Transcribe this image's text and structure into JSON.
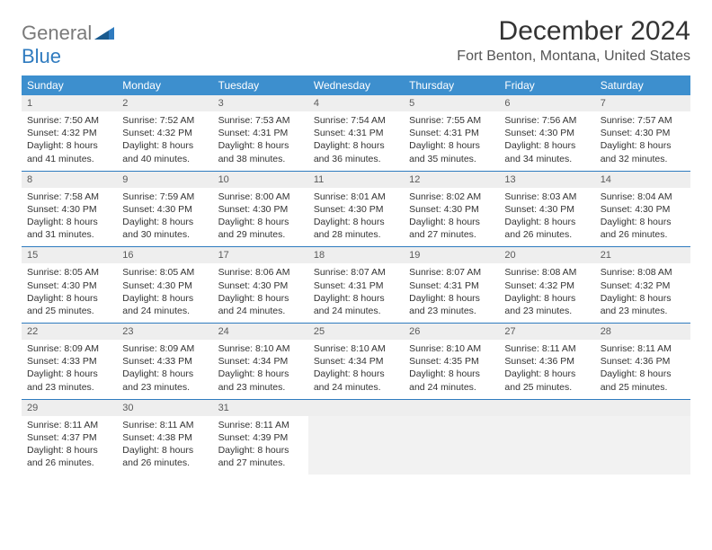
{
  "logo": {
    "word1": "General",
    "word2": "Blue"
  },
  "title": "December 2024",
  "location": "Fort Benton, Montana, United States",
  "colors": {
    "header_bg": "#3d8fce",
    "header_text": "#ffffff",
    "rule": "#2f7bbf",
    "daynum_bg": "#eeeeee",
    "logo_gray": "#7a7a7a",
    "logo_blue": "#2f7bbf"
  },
  "dow": [
    "Sunday",
    "Monday",
    "Tuesday",
    "Wednesday",
    "Thursday",
    "Friday",
    "Saturday"
  ],
  "weeks": [
    [
      {
        "n": "1",
        "sr": "Sunrise: 7:50 AM",
        "ss": "Sunset: 4:32 PM",
        "d1": "Daylight: 8 hours",
        "d2": "and 41 minutes."
      },
      {
        "n": "2",
        "sr": "Sunrise: 7:52 AM",
        "ss": "Sunset: 4:32 PM",
        "d1": "Daylight: 8 hours",
        "d2": "and 40 minutes."
      },
      {
        "n": "3",
        "sr": "Sunrise: 7:53 AM",
        "ss": "Sunset: 4:31 PM",
        "d1": "Daylight: 8 hours",
        "d2": "and 38 minutes."
      },
      {
        "n": "4",
        "sr": "Sunrise: 7:54 AM",
        "ss": "Sunset: 4:31 PM",
        "d1": "Daylight: 8 hours",
        "d2": "and 36 minutes."
      },
      {
        "n": "5",
        "sr": "Sunrise: 7:55 AM",
        "ss": "Sunset: 4:31 PM",
        "d1": "Daylight: 8 hours",
        "d2": "and 35 minutes."
      },
      {
        "n": "6",
        "sr": "Sunrise: 7:56 AM",
        "ss": "Sunset: 4:30 PM",
        "d1": "Daylight: 8 hours",
        "d2": "and 34 minutes."
      },
      {
        "n": "7",
        "sr": "Sunrise: 7:57 AM",
        "ss": "Sunset: 4:30 PM",
        "d1": "Daylight: 8 hours",
        "d2": "and 32 minutes."
      }
    ],
    [
      {
        "n": "8",
        "sr": "Sunrise: 7:58 AM",
        "ss": "Sunset: 4:30 PM",
        "d1": "Daylight: 8 hours",
        "d2": "and 31 minutes."
      },
      {
        "n": "9",
        "sr": "Sunrise: 7:59 AM",
        "ss": "Sunset: 4:30 PM",
        "d1": "Daylight: 8 hours",
        "d2": "and 30 minutes."
      },
      {
        "n": "10",
        "sr": "Sunrise: 8:00 AM",
        "ss": "Sunset: 4:30 PM",
        "d1": "Daylight: 8 hours",
        "d2": "and 29 minutes."
      },
      {
        "n": "11",
        "sr": "Sunrise: 8:01 AM",
        "ss": "Sunset: 4:30 PM",
        "d1": "Daylight: 8 hours",
        "d2": "and 28 minutes."
      },
      {
        "n": "12",
        "sr": "Sunrise: 8:02 AM",
        "ss": "Sunset: 4:30 PM",
        "d1": "Daylight: 8 hours",
        "d2": "and 27 minutes."
      },
      {
        "n": "13",
        "sr": "Sunrise: 8:03 AM",
        "ss": "Sunset: 4:30 PM",
        "d1": "Daylight: 8 hours",
        "d2": "and 26 minutes."
      },
      {
        "n": "14",
        "sr": "Sunrise: 8:04 AM",
        "ss": "Sunset: 4:30 PM",
        "d1": "Daylight: 8 hours",
        "d2": "and 26 minutes."
      }
    ],
    [
      {
        "n": "15",
        "sr": "Sunrise: 8:05 AM",
        "ss": "Sunset: 4:30 PM",
        "d1": "Daylight: 8 hours",
        "d2": "and 25 minutes."
      },
      {
        "n": "16",
        "sr": "Sunrise: 8:05 AM",
        "ss": "Sunset: 4:30 PM",
        "d1": "Daylight: 8 hours",
        "d2": "and 24 minutes."
      },
      {
        "n": "17",
        "sr": "Sunrise: 8:06 AM",
        "ss": "Sunset: 4:30 PM",
        "d1": "Daylight: 8 hours",
        "d2": "and 24 minutes."
      },
      {
        "n": "18",
        "sr": "Sunrise: 8:07 AM",
        "ss": "Sunset: 4:31 PM",
        "d1": "Daylight: 8 hours",
        "d2": "and 24 minutes."
      },
      {
        "n": "19",
        "sr": "Sunrise: 8:07 AM",
        "ss": "Sunset: 4:31 PM",
        "d1": "Daylight: 8 hours",
        "d2": "and 23 minutes."
      },
      {
        "n": "20",
        "sr": "Sunrise: 8:08 AM",
        "ss": "Sunset: 4:32 PM",
        "d1": "Daylight: 8 hours",
        "d2": "and 23 minutes."
      },
      {
        "n": "21",
        "sr": "Sunrise: 8:08 AM",
        "ss": "Sunset: 4:32 PM",
        "d1": "Daylight: 8 hours",
        "d2": "and 23 minutes."
      }
    ],
    [
      {
        "n": "22",
        "sr": "Sunrise: 8:09 AM",
        "ss": "Sunset: 4:33 PM",
        "d1": "Daylight: 8 hours",
        "d2": "and 23 minutes."
      },
      {
        "n": "23",
        "sr": "Sunrise: 8:09 AM",
        "ss": "Sunset: 4:33 PM",
        "d1": "Daylight: 8 hours",
        "d2": "and 23 minutes."
      },
      {
        "n": "24",
        "sr": "Sunrise: 8:10 AM",
        "ss": "Sunset: 4:34 PM",
        "d1": "Daylight: 8 hours",
        "d2": "and 23 minutes."
      },
      {
        "n": "25",
        "sr": "Sunrise: 8:10 AM",
        "ss": "Sunset: 4:34 PM",
        "d1": "Daylight: 8 hours",
        "d2": "and 24 minutes."
      },
      {
        "n": "26",
        "sr": "Sunrise: 8:10 AM",
        "ss": "Sunset: 4:35 PM",
        "d1": "Daylight: 8 hours",
        "d2": "and 24 minutes."
      },
      {
        "n": "27",
        "sr": "Sunrise: 8:11 AM",
        "ss": "Sunset: 4:36 PM",
        "d1": "Daylight: 8 hours",
        "d2": "and 25 minutes."
      },
      {
        "n": "28",
        "sr": "Sunrise: 8:11 AM",
        "ss": "Sunset: 4:36 PM",
        "d1": "Daylight: 8 hours",
        "d2": "and 25 minutes."
      }
    ],
    [
      {
        "n": "29",
        "sr": "Sunrise: 8:11 AM",
        "ss": "Sunset: 4:37 PM",
        "d1": "Daylight: 8 hours",
        "d2": "and 26 minutes."
      },
      {
        "n": "30",
        "sr": "Sunrise: 8:11 AM",
        "ss": "Sunset: 4:38 PM",
        "d1": "Daylight: 8 hours",
        "d2": "and 26 minutes."
      },
      {
        "n": "31",
        "sr": "Sunrise: 8:11 AM",
        "ss": "Sunset: 4:39 PM",
        "d1": "Daylight: 8 hours",
        "d2": "and 27 minutes."
      },
      null,
      null,
      null,
      null
    ]
  ]
}
